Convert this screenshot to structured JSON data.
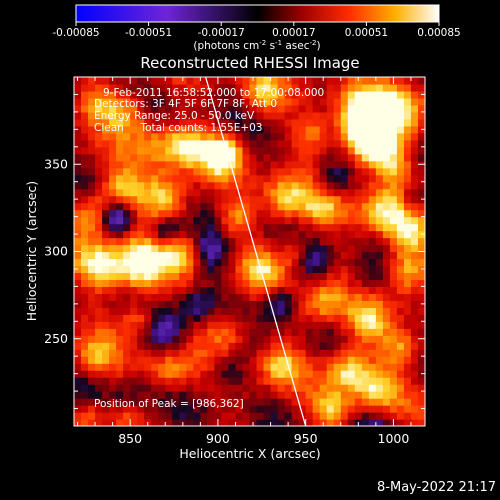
{
  "chart_data": {
    "type": "heatmap",
    "title": "Reconstructed RHESSI Image",
    "xlabel": "Heliocentric X (arcsec)",
    "ylabel": "Heliocentric Y (arcsec)",
    "xlim": [
      818,
      1018
    ],
    "ylim": [
      200,
      400
    ],
    "xticks": [
      850,
      900,
      950,
      1000
    ],
    "yticks": [
      250,
      300,
      350
    ],
    "colorbar": {
      "range": [
        -0.00085,
        0.00085
      ],
      "ticks": [
        "-0.00085",
        "-0.00051",
        "-0.00017",
        "0.00017",
        "0.00051",
        "0.00085"
      ],
      "label_main": "(photons cm",
      "label_exp1": "-2",
      "label_mid": " s",
      "label_exp2": "-1",
      "label_end": " asec",
      "label_exp3": "-2",
      "label_close": ")"
    },
    "info_lines": [
      "9-Feb-2011 16:58:52.000 to 17:00:08.000",
      "Detectors: 3F 4F 5F 6F 7F 8F, Att 0",
      "Energy Range: 25.0 - 50.0 keV",
      "Clean     Total counts: 1.55E+03"
    ],
    "peak_label": "Position of Peak = [986,362]",
    "peak": [
      986,
      362
    ],
    "limb_line": [
      [
        893,
        400
      ],
      [
        950,
        200
      ]
    ],
    "blobs": [
      {
        "x": 986,
        "y": 362,
        "v": 1.0,
        "s": 9
      },
      {
        "x": 982,
        "y": 377,
        "v": 0.9,
        "s": 10
      },
      {
        "x": 1000,
        "y": 380,
        "v": 0.8,
        "s": 12
      },
      {
        "x": 903,
        "y": 356,
        "v": 0.85,
        "s": 8
      },
      {
        "x": 882,
        "y": 360,
        "v": 0.7,
        "s": 8
      },
      {
        "x": 870,
        "y": 330,
        "v": 0.75,
        "s": 10
      },
      {
        "x": 845,
        "y": 335,
        "v": 0.6,
        "s": 9
      },
      {
        "x": 830,
        "y": 322,
        "v": 0.65,
        "s": 8
      },
      {
        "x": 855,
        "y": 292,
        "v": 0.9,
        "s": 11
      },
      {
        "x": 832,
        "y": 292,
        "v": 0.7,
        "s": 9
      },
      {
        "x": 880,
        "y": 300,
        "v": 0.55,
        "s": 8
      },
      {
        "x": 938,
        "y": 330,
        "v": 0.65,
        "s": 9
      },
      {
        "x": 960,
        "y": 326,
        "v": 0.5,
        "s": 9
      },
      {
        "x": 994,
        "y": 322,
        "v": 0.7,
        "s": 10
      },
      {
        "x": 1008,
        "y": 310,
        "v": 0.6,
        "s": 8
      },
      {
        "x": 1008,
        "y": 290,
        "v": 0.65,
        "s": 9
      },
      {
        "x": 925,
        "y": 290,
        "v": 0.5,
        "s": 8
      },
      {
        "x": 960,
        "y": 270,
        "v": 0.55,
        "s": 9
      },
      {
        "x": 985,
        "y": 260,
        "v": 0.55,
        "s": 9
      },
      {
        "x": 905,
        "y": 255,
        "v": 0.5,
        "s": 9
      },
      {
        "x": 935,
        "y": 235,
        "v": 0.55,
        "s": 8
      },
      {
        "x": 975,
        "y": 233,
        "v": 0.75,
        "s": 9
      },
      {
        "x": 990,
        "y": 220,
        "v": 0.55,
        "s": 9
      },
      {
        "x": 1005,
        "y": 245,
        "v": 0.55,
        "s": 8
      },
      {
        "x": 965,
        "y": 210,
        "v": 0.5,
        "s": 7
      },
      {
        "x": 872,
        "y": 232,
        "v": 0.45,
        "s": 8
      },
      {
        "x": 830,
        "y": 240,
        "v": 0.45,
        "s": 8
      },
      {
        "x": 848,
        "y": 380,
        "v": 0.55,
        "s": 9
      },
      {
        "x": 830,
        "y": 385,
        "v": 0.45,
        "s": 8
      },
      {
        "x": 925,
        "y": 390,
        "v": 0.5,
        "s": 8
      },
      {
        "x": 955,
        "y": 368,
        "v": 0.45,
        "s": 8
      },
      {
        "x": 912,
        "y": 320,
        "v": 0.45,
        "s": 7
      },
      {
        "x": 1000,
        "y": 350,
        "v": 0.5,
        "s": 7
      },
      {
        "x": 855,
        "y": 262,
        "v": 0.45,
        "s": 7
      },
      {
        "x": 945,
        "y": 300,
        "v": 0.4,
        "s": 7
      },
      {
        "x": 865,
        "y": 362,
        "v": 0.4,
        "s": 9
      },
      {
        "x": 828,
        "y": 206,
        "v": 0.4,
        "s": 7
      },
      {
        "x": 848,
        "y": 206,
        "v": 0.35,
        "s": 7
      },
      {
        "x": 842,
        "y": 320,
        "v": -0.8,
        "s": 7
      },
      {
        "x": 870,
        "y": 312,
        "v": -0.6,
        "s": 7
      },
      {
        "x": 895,
        "y": 300,
        "v": -0.55,
        "s": 8
      },
      {
        "x": 870,
        "y": 255,
        "v": -0.5,
        "s": 8
      },
      {
        "x": 888,
        "y": 270,
        "v": -0.4,
        "s": 7
      },
      {
        "x": 905,
        "y": 230,
        "v": -0.4,
        "s": 8
      },
      {
        "x": 935,
        "y": 270,
        "v": -0.55,
        "s": 7
      },
      {
        "x": 955,
        "y": 295,
        "v": -0.45,
        "s": 7
      },
      {
        "x": 965,
        "y": 340,
        "v": -0.55,
        "s": 7
      },
      {
        "x": 985,
        "y": 285,
        "v": -0.35,
        "s": 8
      },
      {
        "x": 990,
        "y": 200,
        "v": -0.35,
        "s": 8
      },
      {
        "x": 1012,
        "y": 330,
        "v": -0.4,
        "s": 6
      },
      {
        "x": 850,
        "y": 215,
        "v": -0.25,
        "s": 9
      }
    ]
  }
}
